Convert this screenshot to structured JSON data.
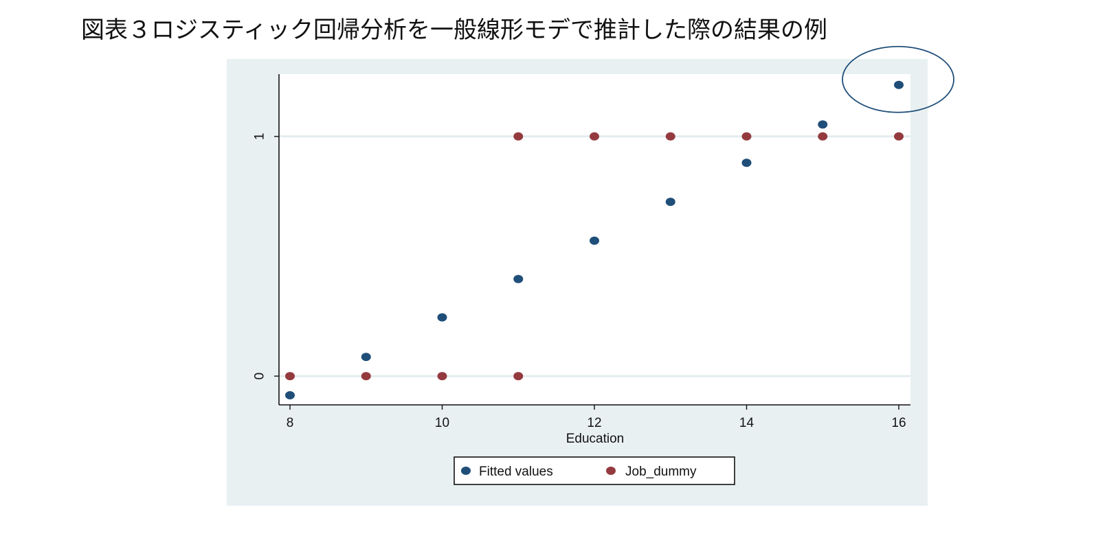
{
  "page": {
    "title": "図表３ロジスティック回帰分析を一般線形モデで推計した際の結果の例"
  },
  "chart_data": {
    "type": "scatter",
    "title": "",
    "xlabel": "Education",
    "ylabel": "",
    "xlim": [
      8,
      16
    ],
    "ylim": [
      -0.12,
      1.26
    ],
    "x_ticks": [
      8,
      10,
      12,
      14,
      16
    ],
    "y_ticks": [
      0,
      1
    ],
    "grid": "horizontal",
    "legend_position": "bottom",
    "series": [
      {
        "name": "Fitted values",
        "color": "#1f4e79",
        "points": [
          [
            8,
            -0.08
          ],
          [
            9,
            0.08
          ],
          [
            10,
            0.245
          ],
          [
            11,
            0.405
          ],
          [
            12,
            0.565
          ],
          [
            13,
            0.727
          ],
          [
            14,
            0.89
          ],
          [
            15,
            1.05
          ],
          [
            16,
            1.215
          ]
        ]
      },
      {
        "name": "Job_dummy",
        "color": "#943a3f",
        "points": [
          [
            8,
            0
          ],
          [
            9,
            0
          ],
          [
            10,
            0
          ],
          [
            11,
            0
          ],
          [
            11,
            1
          ],
          [
            12,
            1
          ],
          [
            13,
            1
          ],
          [
            14,
            1
          ],
          [
            15,
            1
          ],
          [
            16,
            1
          ]
        ]
      }
    ],
    "annotations": [
      {
        "type": "ellipse",
        "target_x": 16,
        "target_y": 1.215,
        "color": "#1f4e79"
      }
    ],
    "colors": {
      "plot_region_bg": "#e9f0f2",
      "plot_bg": "#ffffff",
      "gridline": "#e4ecef",
      "axis": "#111111"
    }
  }
}
